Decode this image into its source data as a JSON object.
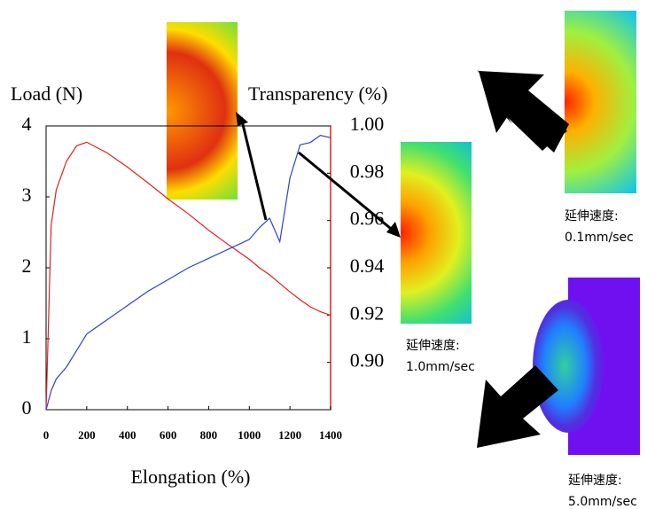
{
  "chart_data": {
    "type": "line",
    "y_label": "Load (N)",
    "y2_label": "Transparency (%)",
    "x_label": "Elongation (%)",
    "x": [
      0,
      25,
      50,
      100,
      150,
      200,
      300,
      400,
      500,
      600,
      700,
      800,
      900,
      1000,
      1050,
      1100,
      1150,
      1200,
      1250,
      1300,
      1350,
      1400
    ],
    "series": [
      {
        "name": "Load",
        "color": "#e02020",
        "values": [
          0,
          2.6,
          3.1,
          3.5,
          3.72,
          3.77,
          3.62,
          3.42,
          3.2,
          2.97,
          2.76,
          2.53,
          2.32,
          2.12,
          2.0,
          1.9,
          1.78,
          1.66,
          1.55,
          1.45,
          1.38,
          1.33
        ]
      },
      {
        "name": "Transparency",
        "color": "#3040d0",
        "axis": "y2",
        "values": [
          0.88,
          0.888,
          0.893,
          0.898,
          0.905,
          0.912,
          0.918,
          0.924,
          0.93,
          0.935,
          0.94,
          0.944,
          0.948,
          0.952,
          0.957,
          0.961,
          0.951,
          0.978,
          0.992,
          0.993,
          0.996,
          0.995
        ]
      }
    ],
    "xlim": [
      0,
      1400
    ],
    "xticks": [
      0,
      200,
      400,
      600,
      800,
      1000,
      1200,
      1400
    ],
    "ylim": [
      0,
      4
    ],
    "yticks": [
      0,
      1,
      2,
      3,
      4
    ],
    "y2lim": [
      0.88,
      1.0
    ],
    "y2ticks": [
      {
        "value": 0.9,
        "label": "0.90"
      },
      0.92,
      0.94,
      0.96,
      0.98,
      {
        "value": 1.0,
        "label": "1.00"
      }
    ],
    "annotations": [
      "延伸速度:",
      "0.1mm/sec",
      "延伸速度:",
      "1.0mm/sec",
      "延伸速度:",
      "5.0mm/sec"
    ]
  }
}
